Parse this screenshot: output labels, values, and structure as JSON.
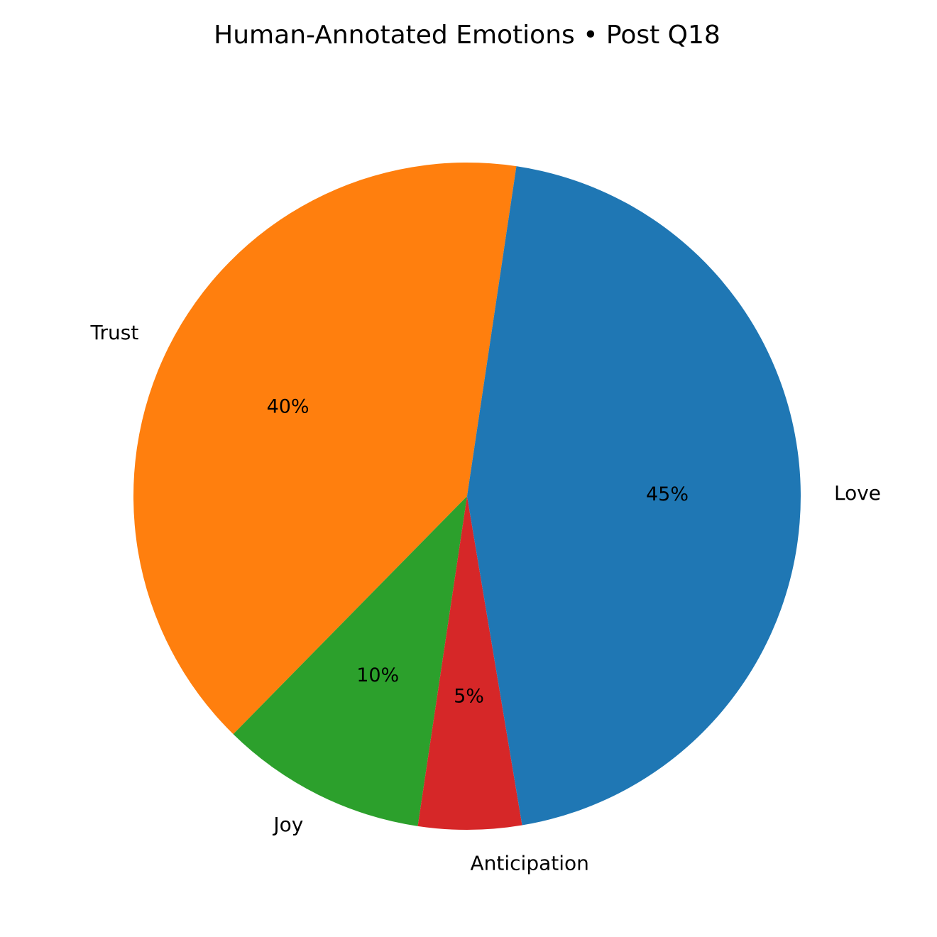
{
  "chart_data": {
    "type": "pie",
    "title": "Human-Annotated Emotions • Post Q18",
    "categories": [
      "Trust",
      "Joy",
      "Anticipation",
      "Love"
    ],
    "values": [
      40,
      10,
      5,
      45
    ],
    "percent_labels": [
      "40%",
      "10%",
      "5%",
      "45%"
    ],
    "colors": [
      "#ff7f0e",
      "#2ca02c",
      "#d62728",
      "#1f77b4"
    ],
    "legend": "none"
  }
}
